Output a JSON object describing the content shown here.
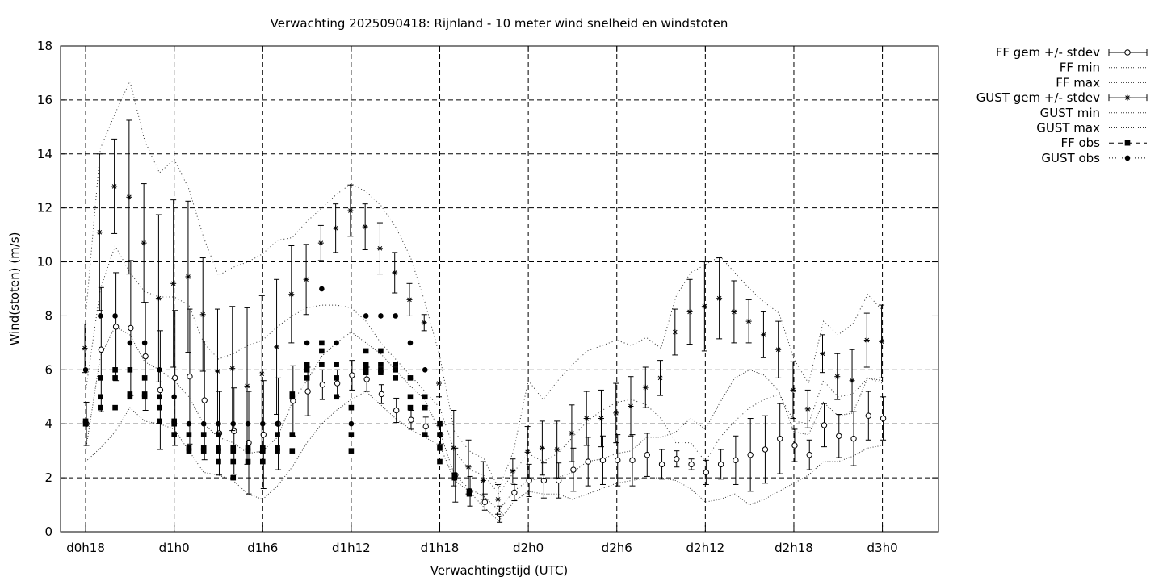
{
  "chart_data": {
    "type": "line",
    "title": "Verwachting 2025090418: Rijnland - 10 meter wind snelheid en windstoten",
    "xlabel": "Verwachtingstijd (UTC)",
    "ylabel": "Wind(stoten) (m/s)",
    "x_unit": "hours since d0h0",
    "xlim": [
      16.3,
      75.8
    ],
    "ylim": [
      0,
      18
    ],
    "grid": true,
    "legend_position": "outside-right",
    "x_ticks": [
      {
        "value": 18,
        "label": "d0h18"
      },
      {
        "value": 24,
        "label": "d1h0"
      },
      {
        "value": 30,
        "label": "d1h6"
      },
      {
        "value": 36,
        "label": "d1h12"
      },
      {
        "value": 42,
        "label": "d1h18"
      },
      {
        "value": 48,
        "label": "d2h0"
      },
      {
        "value": 54,
        "label": "d2h6"
      },
      {
        "value": 60,
        "label": "d2h12"
      },
      {
        "value": 66,
        "label": "d2h18"
      },
      {
        "value": 72,
        "label": "d3h0"
      }
    ],
    "y_ticks": [
      0,
      2,
      4,
      6,
      8,
      10,
      12,
      14,
      16,
      18
    ],
    "x": [
      18,
      19,
      20,
      21,
      22,
      23,
      24,
      25,
      26,
      27,
      28,
      29,
      30,
      31,
      32,
      33,
      34,
      35,
      36,
      37,
      38,
      39,
      40,
      41,
      42,
      43,
      44,
      45,
      46,
      47,
      48,
      49,
      50,
      51,
      52,
      53,
      54,
      55,
      56,
      57,
      58,
      59,
      60,
      61,
      62,
      63,
      64,
      65,
      66,
      67,
      68,
      69,
      70,
      71,
      72
    ],
    "series": [
      {
        "name": "FF gem +/- stdev",
        "style": "errorbar-open-circle",
        "values": [
          4.0,
          6.75,
          7.6,
          7.55,
          6.5,
          5.25,
          5.7,
          5.75,
          4.87,
          3.65,
          3.73,
          3.3,
          3.6,
          4.0,
          4.85,
          5.2,
          5.45,
          5.5,
          5.8,
          5.65,
          5.1,
          4.5,
          4.15,
          3.9,
          3.6,
          2.1,
          1.5,
          1.1,
          0.65,
          1.45,
          1.9,
          1.9,
          1.9,
          2.3,
          2.6,
          2.65,
          2.65,
          2.65,
          2.85,
          2.5,
          2.7,
          2.5,
          2.2,
          2.5,
          2.65,
          2.85,
          3.05,
          3.45,
          3.2,
          2.85,
          3.95,
          3.55,
          3.45,
          4.3,
          4.2
        ],
        "stdev": [
          0.8,
          2.3,
          2.0,
          2.5,
          2.0,
          2.2,
          2.5,
          2.5,
          2.2,
          1.55,
          1.6,
          1.9,
          2.0,
          1.7,
          1.3,
          0.9,
          0.55,
          0.5,
          0.55,
          0.45,
          0.35,
          0.45,
          0.35,
          0.35,
          0.35,
          1.0,
          0.55,
          0.3,
          0.3,
          0.3,
          0.6,
          0.65,
          0.65,
          0.8,
          0.9,
          0.9,
          0.95,
          0.95,
          0.8,
          0.55,
          0.3,
          0.2,
          0.45,
          0.55,
          0.9,
          1.35,
          1.25,
          1.3,
          0.6,
          0.55,
          0.8,
          0.8,
          1.0,
          0.9,
          0.8
        ]
      },
      {
        "name": "FF min",
        "style": "dotted",
        "values": [
          2.6,
          3.1,
          3.7,
          4.6,
          4.1,
          4.0,
          3.8,
          3.0,
          2.2,
          2.1,
          1.9,
          1.4,
          1.2,
          1.7,
          2.4,
          3.3,
          4.0,
          4.5,
          4.9,
          5.2,
          4.7,
          4.2,
          3.8,
          3.5,
          3.2,
          1.9,
          1.5,
          0.9,
          0.4,
          1.1,
          1.5,
          1.4,
          1.4,
          1.2,
          1.4,
          1.6,
          1.8,
          1.9,
          2.0,
          2.0,
          1.9,
          1.6,
          1.1,
          1.2,
          1.4,
          1.0,
          1.2,
          1.5,
          1.8,
          2.1,
          2.6,
          2.6,
          2.8,
          3.1,
          3.2
        ]
      },
      {
        "name": "FF max",
        "style": "dotted",
        "values": [
          5.2,
          9.0,
          10.6,
          9.6,
          8.9,
          8.7,
          8.7,
          8.4,
          7.0,
          6.4,
          6.6,
          6.9,
          7.1,
          7.6,
          8.0,
          8.3,
          8.4,
          8.4,
          8.3,
          7.8,
          7.0,
          6.4,
          5.8,
          5.2,
          4.6,
          3.0,
          2.3,
          2.1,
          1.4,
          2.2,
          2.9,
          2.6,
          2.9,
          3.5,
          4.1,
          4.5,
          4.8,
          4.9,
          4.7,
          4.2,
          3.3,
          3.3,
          2.6,
          3.5,
          4.1,
          4.6,
          4.9,
          5.1,
          4.1,
          4.0,
          5.6,
          5.0,
          5.1,
          5.7,
          5.5
        ]
      },
      {
        "name": "GUST gem +/- stdev",
        "style": "errorbar-star",
        "values": [
          6.8,
          11.1,
          12.8,
          12.4,
          10.7,
          8.65,
          9.2,
          9.45,
          8.05,
          5.95,
          6.05,
          5.4,
          5.85,
          6.85,
          8.8,
          9.35,
          10.7,
          11.25,
          11.9,
          11.3,
          10.5,
          9.6,
          8.6,
          7.75,
          5.5,
          3.1,
          2.4,
          1.9,
          1.2,
          2.25,
          2.95,
          3.1,
          3.05,
          3.65,
          4.2,
          4.2,
          4.4,
          4.65,
          5.35,
          5.7,
          7.4,
          8.15,
          8.35,
          8.65,
          8.15,
          7.8,
          7.3,
          6.75,
          5.25,
          4.55,
          6.6,
          5.75,
          5.6,
          7.1,
          7.05
        ],
        "stdev": [
          0.9,
          2.9,
          1.75,
          2.85,
          2.2,
          3.1,
          3.1,
          2.8,
          2.1,
          2.3,
          2.3,
          2.9,
          2.9,
          2.5,
          1.8,
          1.3,
          0.65,
          0.9,
          0.95,
          0.85,
          0.95,
          0.75,
          0.6,
          0.3,
          0.5,
          1.4,
          1.0,
          0.7,
          0.55,
          0.45,
          0.95,
          1.0,
          1.05,
          1.05,
          1.0,
          1.05,
          1.1,
          1.1,
          0.75,
          0.65,
          0.85,
          1.2,
          1.65,
          1.5,
          1.15,
          0.8,
          0.85,
          1.05,
          1.05,
          0.7,
          0.7,
          0.85,
          1.15,
          1.0,
          1.35
        ]
      },
      {
        "name": "GUST min",
        "style": "dotted",
        "values": [
          3.0,
          6.5,
          7.6,
          7.3,
          6.3,
          6.0,
          5.6,
          5.0,
          4.0,
          3.5,
          3.3,
          2.9,
          3.0,
          3.5,
          4.8,
          5.6,
          6.5,
          7.0,
          7.4,
          7.0,
          6.6,
          6.0,
          5.4,
          4.9,
          3.7,
          2.1,
          1.6,
          1.3,
          0.8,
          1.5,
          1.9,
          2.0,
          2.0,
          2.2,
          2.6,
          2.7,
          2.9,
          3.0,
          3.5,
          3.5,
          3.7,
          4.2,
          3.8,
          4.8,
          5.7,
          6.0,
          5.8,
          5.2,
          3.7,
          3.6,
          4.8,
          4.3,
          4.4,
          5.7,
          5.6
        ]
      },
      {
        "name": "GUST max",
        "style": "dotted",
        "values": [
          8.0,
          14.2,
          15.5,
          16.7,
          14.5,
          13.3,
          13.8,
          12.7,
          10.9,
          9.5,
          9.8,
          10.0,
          10.3,
          10.8,
          10.9,
          11.5,
          12.0,
          12.5,
          12.9,
          12.6,
          12.1,
          11.3,
          10.2,
          8.5,
          6.5,
          3.7,
          3.0,
          2.7,
          1.6,
          3.0,
          5.6,
          4.9,
          5.6,
          6.2,
          6.7,
          6.9,
          7.1,
          6.9,
          7.2,
          6.8,
          8.7,
          9.6,
          9.9,
          10.2,
          9.6,
          9.0,
          8.5,
          8.1,
          6.4,
          5.5,
          7.8,
          7.3,
          7.7,
          8.8,
          8.2
        ]
      }
    ],
    "observations": [
      {
        "name": "FF obs",
        "style": "filled-square",
        "points": [
          [
            18,
            4.0
          ],
          [
            18,
            4.1
          ],
          [
            19,
            4.6
          ],
          [
            19,
            5.0
          ],
          [
            19,
            5.7
          ],
          [
            20,
            4.6
          ],
          [
            20,
            5.7
          ],
          [
            20,
            6.0
          ],
          [
            21,
            5.0
          ],
          [
            21,
            5.1
          ],
          [
            21,
            6.0
          ],
          [
            22,
            5.0
          ],
          [
            22,
            5.1
          ],
          [
            22,
            5.7
          ],
          [
            23,
            4.1
          ],
          [
            23,
            4.6
          ],
          [
            23,
            5.0
          ],
          [
            24,
            3.6
          ],
          [
            24,
            4.0
          ],
          [
            24,
            4.1
          ],
          [
            25,
            3.0
          ],
          [
            25,
            3.1
          ],
          [
            25,
            3.6
          ],
          [
            26,
            3.0
          ],
          [
            26,
            3.1
          ],
          [
            26,
            3.6
          ],
          [
            27,
            2.6
          ],
          [
            27,
            3.0
          ],
          [
            27,
            3.1
          ],
          [
            27,
            3.6
          ],
          [
            28,
            2.0
          ],
          [
            28,
            2.6
          ],
          [
            28,
            3.0
          ],
          [
            28,
            3.1
          ],
          [
            29,
            2.6
          ],
          [
            29,
            3.0
          ],
          [
            29,
            3.1
          ],
          [
            30,
            2.6
          ],
          [
            30,
            3.0
          ],
          [
            30,
            3.1
          ],
          [
            31,
            3.0
          ],
          [
            31,
            3.1
          ],
          [
            31,
            3.6
          ],
          [
            32,
            3.0
          ],
          [
            32,
            3.6
          ],
          [
            32,
            5.0
          ],
          [
            32,
            5.1
          ],
          [
            33,
            5.7
          ],
          [
            33,
            6.0
          ],
          [
            33,
            6.2
          ],
          [
            34,
            6.2
          ],
          [
            34,
            6.7
          ],
          [
            34,
            7.0
          ],
          [
            35,
            5.0
          ],
          [
            35,
            5.7
          ],
          [
            35,
            6.2
          ],
          [
            36,
            3.0
          ],
          [
            36,
            3.6
          ],
          [
            36,
            4.6
          ],
          [
            37,
            5.9
          ],
          [
            37,
            6.0
          ],
          [
            37,
            6.2
          ],
          [
            37,
            6.7
          ],
          [
            38,
            5.9
          ],
          [
            38,
            6.0
          ],
          [
            38,
            6.2
          ],
          [
            38,
            6.7
          ],
          [
            39,
            5.7
          ],
          [
            39,
            6.0
          ],
          [
            39,
            6.2
          ],
          [
            40,
            4.6
          ],
          [
            40,
            5.0
          ],
          [
            40,
            5.7
          ],
          [
            41,
            3.6
          ],
          [
            41,
            4.6
          ],
          [
            41,
            5.0
          ],
          [
            42,
            2.6
          ],
          [
            42,
            3.1
          ],
          [
            42,
            3.6
          ],
          [
            42,
            4.0
          ],
          [
            43,
            2.0
          ],
          [
            43,
            2.1
          ],
          [
            44,
            1.4
          ],
          [
            44,
            1.5
          ]
        ]
      },
      {
        "name": "GUST obs",
        "style": "filled-circle",
        "points": [
          [
            18,
            6.0
          ],
          [
            19,
            8.0
          ],
          [
            20,
            8.0
          ],
          [
            21,
            7.0
          ],
          [
            22,
            7.0
          ],
          [
            23,
            6.0
          ],
          [
            24,
            5.0
          ],
          [
            25,
            4.0
          ],
          [
            26,
            4.0
          ],
          [
            27,
            4.0
          ],
          [
            28,
            4.0
          ],
          [
            29,
            4.0
          ],
          [
            30,
            4.0
          ],
          [
            31,
            4.0
          ],
          [
            33,
            7.0
          ],
          [
            34,
            9.0
          ],
          [
            35,
            7.0
          ],
          [
            36,
            4.0
          ],
          [
            37,
            8.0
          ],
          [
            38,
            8.0
          ],
          [
            39,
            8.0
          ],
          [
            40,
            7.0
          ],
          [
            41,
            6.0
          ]
        ]
      }
    ]
  }
}
